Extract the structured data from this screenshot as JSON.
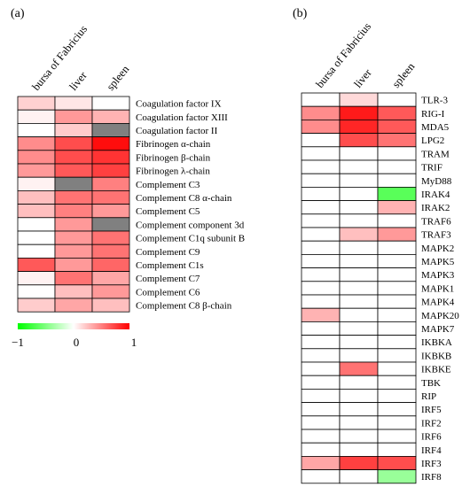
{
  "colors": {
    "negative": "#00ff00",
    "neutral": "#ffffff",
    "positive": "#ff0000",
    "missing": "#808080"
  },
  "chart_data": [
    {
      "type": "heatmap",
      "panel_label": "(a)",
      "columns": [
        "bursa of Fabricius",
        "liver",
        "spleen"
      ],
      "rows": [
        "Coagulation factor IX",
        "Coagulation factor XIII",
        "Coagulation factor II",
        "Fibrinogen α-chain",
        "Fibrinogen β-chain",
        "Fibrinogen λ-chain",
        "Complement C3",
        "Complement C8 α-chain",
        "Complement C5",
        "Complement component 3d",
        "Complement C1q subunit B",
        "Complement C9",
        "Complement C1s",
        "Complement C7",
        "Complement C6",
        "Complement C8 β-chain"
      ],
      "values": [
        [
          0.18,
          0.1,
          0.0
        ],
        [
          0.05,
          0.4,
          0.3
        ],
        [
          0.0,
          0.2,
          null
        ],
        [
          0.45,
          0.7,
          0.95
        ],
        [
          0.45,
          0.7,
          0.8
        ],
        [
          0.4,
          0.65,
          0.75
        ],
        [
          0.05,
          null,
          0.5
        ],
        [
          0.25,
          0.55,
          0.55
        ],
        [
          0.25,
          0.5,
          0.4
        ],
        [
          0.0,
          0.4,
          null
        ],
        [
          0.0,
          0.4,
          0.55
        ],
        [
          0.0,
          0.4,
          0.55
        ],
        [
          0.65,
          0.4,
          0.6
        ],
        [
          0.05,
          0.55,
          0.35
        ],
        [
          0.0,
          0.25,
          0.4
        ],
        [
          0.2,
          0.35,
          0.25
        ]
      ],
      "colorbar": {
        "min": -1,
        "max": 1,
        "ticks": [
          "−1",
          "0",
          "1"
        ]
      }
    },
    {
      "type": "heatmap",
      "panel_label": "(b)",
      "columns": [
        "bursa of Fabricius",
        "liver",
        "spleen"
      ],
      "rows": [
        "TLR-3",
        "RIG-I",
        "MDA5",
        "LPG2",
        "TRAM",
        "TRIF",
        "MyD88",
        "IRAK4",
        "IRAK2",
        "TRAF6",
        "TRAF3",
        "MAPK2",
        "MAPK5",
        "MAPK3",
        "MAPK1",
        "MAPK4",
        "MAPK20",
        "MAPK7",
        "IKBKA",
        "IKBKB",
        "IKBKE",
        "TBK",
        "RIP",
        "IRF5",
        "IRF2",
        "IRF6",
        "IRF4",
        "IRF3",
        "IRF8"
      ],
      "values": [
        [
          0,
          0.15,
          0
        ],
        [
          0.45,
          0.9,
          0.65
        ],
        [
          0.45,
          0.85,
          0.65
        ],
        [
          0,
          0.7,
          0.55
        ],
        [
          0,
          0,
          0
        ],
        [
          0,
          0,
          0
        ],
        [
          0,
          0,
          0
        ],
        [
          0,
          0,
          -0.65
        ],
        [
          0,
          0,
          0.3
        ],
        [
          0,
          0,
          0
        ],
        [
          0,
          0.25,
          0.4
        ],
        [
          0,
          0,
          0
        ],
        [
          0,
          0,
          0
        ],
        [
          0,
          0,
          0
        ],
        [
          0,
          0,
          0
        ],
        [
          0,
          0,
          0
        ],
        [
          0.3,
          0,
          0
        ],
        [
          0,
          0,
          0
        ],
        [
          0,
          0,
          0
        ],
        [
          0,
          0,
          0
        ],
        [
          0,
          0.55,
          0
        ],
        [
          0,
          0,
          0
        ],
        [
          0,
          0,
          0
        ],
        [
          0,
          0,
          0
        ],
        [
          0,
          0,
          0
        ],
        [
          0,
          0,
          0
        ],
        [
          0,
          0,
          0
        ],
        [
          0.35,
          0.75,
          0.7
        ],
        [
          0,
          0,
          -0.4
        ]
      ]
    }
  ]
}
